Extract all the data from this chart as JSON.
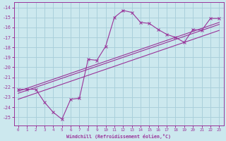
{
  "xlabel": "Windchill (Refroidissement éolien,°C)",
  "bg_color": "#cce8ee",
  "grid_color": "#aad0db",
  "line_color": "#993399",
  "x_data": [
    0,
    1,
    2,
    3,
    4,
    5,
    6,
    7,
    8,
    9,
    10,
    11,
    12,
    13,
    14,
    15,
    16,
    17,
    18,
    19,
    20,
    21,
    22,
    23
  ],
  "y_main": [
    -22.2,
    -22.2,
    -22.2,
    -23.5,
    -24.5,
    -25.2,
    -23.2,
    -23.1,
    -19.2,
    -19.3,
    -17.9,
    -15.0,
    -14.3,
    -14.5,
    -15.5,
    -15.6,
    -16.2,
    -16.7,
    -17.0,
    -17.5,
    -16.2,
    -16.3,
    -15.1,
    -15.1
  ],
  "y_reg1": [
    -22.6,
    -22.3,
    -22.0,
    -21.7,
    -21.4,
    -21.1,
    -20.8,
    -20.5,
    -20.2,
    -19.9,
    -19.6,
    -19.3,
    -19.0,
    -18.7,
    -18.4,
    -18.1,
    -17.8,
    -17.5,
    -17.2,
    -16.9,
    -16.6,
    -16.3,
    -16.0,
    -15.7
  ],
  "y_reg2": [
    -23.2,
    -22.9,
    -22.6,
    -22.3,
    -22.0,
    -21.7,
    -21.4,
    -21.1,
    -20.8,
    -20.5,
    -20.2,
    -19.9,
    -19.6,
    -19.3,
    -19.0,
    -18.7,
    -18.4,
    -18.1,
    -17.8,
    -17.5,
    -17.2,
    -16.9,
    -16.6,
    -16.3
  ],
  "y_reg3": [
    -22.4,
    -22.1,
    -21.8,
    -21.5,
    -21.2,
    -20.9,
    -20.6,
    -20.3,
    -20.0,
    -19.7,
    -19.4,
    -19.1,
    -18.8,
    -18.5,
    -18.2,
    -17.9,
    -17.6,
    -17.3,
    -17.0,
    -16.7,
    -16.4,
    -16.1,
    -15.8,
    -15.5
  ],
  "ylim": [
    -25.8,
    -13.5
  ],
  "xlim": [
    -0.5,
    23.5
  ],
  "yticks": [
    -25,
    -24,
    -23,
    -22,
    -21,
    -20,
    -19,
    -18,
    -17,
    -16,
    -15,
    -14
  ],
  "xticks": [
    0,
    1,
    2,
    3,
    4,
    5,
    6,
    7,
    8,
    9,
    10,
    11,
    12,
    13,
    14,
    15,
    16,
    17,
    18,
    19,
    20,
    21,
    22,
    23
  ]
}
